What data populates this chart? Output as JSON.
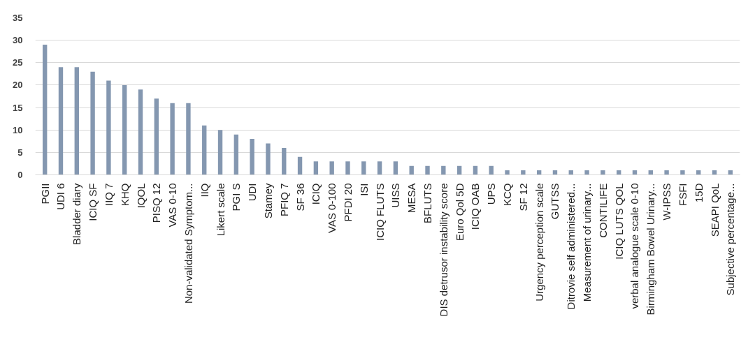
{
  "chart_data": {
    "type": "bar",
    "categories": [
      "PGII",
      "UDI 6",
      "Bladder diary",
      "ICIQ SF",
      "IIQ 7",
      "KHQ",
      "IQOL",
      "PISQ 12",
      "VAS 0-10",
      "Non-validated Symptom...",
      "IIQ",
      "Likert scale",
      "PGI S",
      "UDI",
      "Stamey",
      "PFIQ 7",
      "SF 36",
      "ICIQ",
      "VAS 0-100",
      "PFDI 20",
      "ISI",
      "ICIQ FLUTS",
      "UISS",
      "MESA",
      "BFLUTS",
      "DIS detrusor instability score",
      "Euro Qol 5D",
      "ICIQ OAB",
      "UPS",
      "KCQ",
      "SF 12",
      "Urgency perception scale",
      "GUTSS",
      "Ditrovie self administered...",
      "Measurement of urinary...",
      "CONTILIFE",
      "ICIQ LUTS QOL",
      "verbal analogue scale 0-10",
      "Birmingham Bowel Urinary...",
      "W-IPSS",
      "FSFI",
      "15D",
      "SEAPI QoL",
      "Subjective percentage..."
    ],
    "values": [
      29,
      24,
      24,
      23,
      21,
      20,
      19,
      17,
      16,
      16,
      11,
      10,
      9,
      8,
      7,
      6,
      4,
      3,
      3,
      3,
      3,
      3,
      3,
      2,
      2,
      2,
      2,
      2,
      2,
      1,
      1,
      1,
      1,
      1,
      1,
      1,
      1,
      1,
      1,
      1,
      1,
      1,
      1,
      1
    ],
    "color": "#8497b0",
    "ylim": [
      0,
      35
    ],
    "yticks": [
      0,
      5,
      10,
      15,
      20,
      25,
      30,
      35
    ],
    "grid": "y"
  }
}
